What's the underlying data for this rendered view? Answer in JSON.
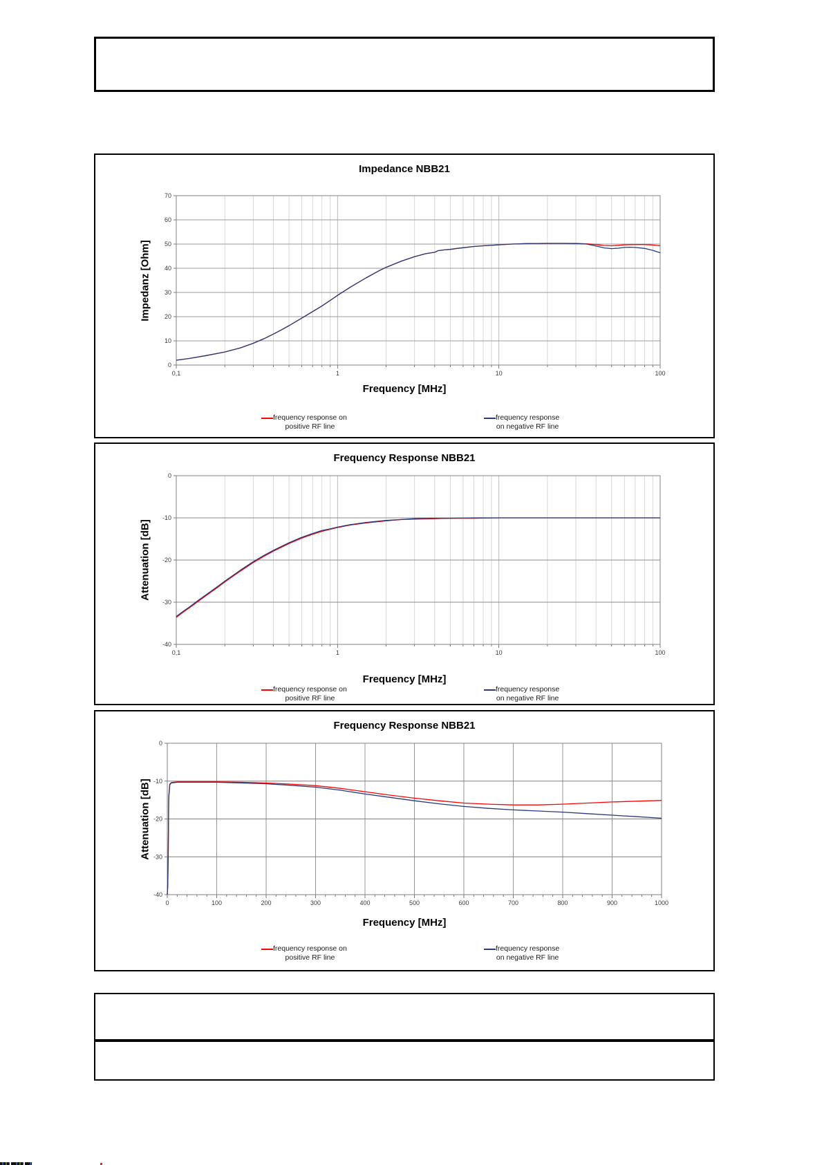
{
  "page": {
    "background": "#ffffff"
  },
  "chart_data": [
    {
      "type": "line",
      "title": "Impedance NBB21",
      "xlabel": "Frequency [MHz]",
      "ylabel": "Impedanz [Ohm]",
      "xscale": "log",
      "xlim": [
        0.1,
        100
      ],
      "ylim": [
        0,
        70
      ],
      "grid": true,
      "legend_position": "bottom",
      "xtick_values": [
        0.1,
        1,
        10,
        100
      ],
      "xtick_labels": [
        "0,1",
        "1",
        "10",
        "100"
      ],
      "ytick_values": [
        70,
        60,
        50,
        40,
        30,
        20,
        10,
        0
      ],
      "ytick_labels": [
        "70",
        "60",
        "50",
        "40",
        "30",
        "20",
        "10",
        "0"
      ],
      "legend": {
        "pos_line1": "frequency response on",
        "pos_line2": "positive RF line",
        "neg_line1": "frequency response",
        "neg_line2": "on negative RF line"
      },
      "series": [
        {
          "name": "frequency response on positive RF line",
          "color": "#ff0000",
          "points": [
            [
              0.1,
              2.0
            ],
            [
              0.12,
              2.7
            ],
            [
              0.15,
              3.8
            ],
            [
              0.2,
              5.4
            ],
            [
              0.25,
              7.1
            ],
            [
              0.3,
              9.0
            ],
            [
              0.35,
              10.9
            ],
            [
              0.4,
              12.8
            ],
            [
              0.45,
              14.6
            ],
            [
              0.5,
              16.3
            ],
            [
              0.6,
              19.4
            ],
            [
              0.7,
              22.1
            ],
            [
              0.8,
              24.4
            ],
            [
              0.9,
              26.7
            ],
            [
              1.0,
              28.8
            ],
            [
              1.2,
              32.2
            ],
            [
              1.5,
              36.0
            ],
            [
              1.8,
              38.9
            ],
            [
              2.0,
              40.4
            ],
            [
              2.5,
              43.0
            ],
            [
              3.0,
              44.8
            ],
            [
              3.5,
              46.0
            ],
            [
              4.0,
              46.6
            ],
            [
              4.2,
              47.3
            ],
            [
              4.6,
              47.6
            ],
            [
              5.0,
              47.8
            ],
            [
              5.5,
              48.2
            ],
            [
              6.0,
              48.5
            ],
            [
              7.0,
              49.0
            ],
            [
              8.0,
              49.3
            ],
            [
              10,
              49.7
            ],
            [
              12,
              50.0
            ],
            [
              15,
              50.2
            ],
            [
              20,
              50.3
            ],
            [
              25,
              50.3
            ],
            [
              30,
              50.3
            ],
            [
              35,
              50.1
            ],
            [
              40,
              49.8
            ],
            [
              45,
              49.4
            ],
            [
              50,
              49.3
            ],
            [
              55,
              49.5
            ],
            [
              60,
              49.7
            ],
            [
              70,
              49.8
            ],
            [
              80,
              49.8
            ],
            [
              90,
              49.6
            ],
            [
              100,
              49.3
            ]
          ]
        },
        {
          "name": "frequency response on negative RF line",
          "color": "#27397a",
          "points": [
            [
              0.1,
              2.0
            ],
            [
              0.12,
              2.7
            ],
            [
              0.15,
              3.8
            ],
            [
              0.2,
              5.4
            ],
            [
              0.25,
              7.1
            ],
            [
              0.3,
              9.0
            ],
            [
              0.35,
              10.9
            ],
            [
              0.4,
              12.8
            ],
            [
              0.45,
              14.6
            ],
            [
              0.5,
              16.3
            ],
            [
              0.6,
              19.4
            ],
            [
              0.7,
              22.1
            ],
            [
              0.8,
              24.4
            ],
            [
              0.9,
              26.7
            ],
            [
              1.0,
              28.8
            ],
            [
              1.2,
              32.2
            ],
            [
              1.5,
              36.0
            ],
            [
              1.8,
              38.9
            ],
            [
              2.0,
              40.4
            ],
            [
              2.5,
              43.0
            ],
            [
              3.0,
              44.8
            ],
            [
              3.5,
              46.0
            ],
            [
              4.0,
              46.6
            ],
            [
              4.2,
              47.3
            ],
            [
              4.6,
              47.6
            ],
            [
              5.0,
              47.8
            ],
            [
              5.5,
              48.2
            ],
            [
              6.0,
              48.5
            ],
            [
              7.0,
              49.0
            ],
            [
              8.0,
              49.3
            ],
            [
              10,
              49.7
            ],
            [
              12,
              50.0
            ],
            [
              15,
              50.2
            ],
            [
              20,
              50.3
            ],
            [
              25,
              50.3
            ],
            [
              30,
              50.2
            ],
            [
              35,
              50.0
            ],
            [
              40,
              49.2
            ],
            [
              45,
              48.4
            ],
            [
              50,
              48.1
            ],
            [
              55,
              48.3
            ],
            [
              60,
              48.6
            ],
            [
              65,
              48.7
            ],
            [
              70,
              48.6
            ],
            [
              80,
              48.2
            ],
            [
              90,
              47.4
            ],
            [
              100,
              46.4
            ]
          ]
        }
      ]
    },
    {
      "type": "line",
      "title": "Frequency Response NBB21",
      "xlabel": "Frequency [MHz]",
      "ylabel": "Attenuation [dB]",
      "xscale": "log",
      "xlim": [
        0.1,
        100
      ],
      "ylim": [
        -40,
        0
      ],
      "grid": true,
      "legend_position": "bottom",
      "xtick_values": [
        0.1,
        1,
        10,
        100
      ],
      "xtick_labels": [
        "0,1",
        "1",
        "10",
        "100"
      ],
      "ytick_values": [
        0,
        -10,
        -20,
        -30,
        -40
      ],
      "ytick_labels": [
        "0",
        "-10",
        "-20",
        "-30",
        "-40"
      ],
      "legend": {
        "pos_line1": "frequency response on",
        "pos_line2": "positive RF line",
        "neg_line1": "frequency response",
        "neg_line2": "on negative RF line"
      },
      "series": [
        {
          "name": "frequency response on positive RF line",
          "color": "#ff0000",
          "points": [
            [
              0.1,
              -33.6
            ],
            [
              0.11,
              -32.4
            ],
            [
              0.12,
              -31.4
            ],
            [
              0.14,
              -29.5
            ],
            [
              0.16,
              -27.9
            ],
            [
              0.18,
              -26.5
            ],
            [
              0.2,
              -25.2
            ],
            [
              0.25,
              -22.6
            ],
            [
              0.3,
              -20.6
            ],
            [
              0.35,
              -19.1
            ],
            [
              0.4,
              -17.9
            ],
            [
              0.5,
              -16.1
            ],
            [
              0.6,
              -14.8
            ],
            [
              0.7,
              -13.9
            ],
            [
              0.8,
              -13.2
            ],
            [
              0.9,
              -12.7
            ],
            [
              1.0,
              -12.3
            ],
            [
              1.2,
              -11.7
            ],
            [
              1.5,
              -11.2
            ],
            [
              2.0,
              -10.7
            ],
            [
              2.5,
              -10.4
            ],
            [
              3.0,
              -10.3
            ],
            [
              4.0,
              -10.2
            ],
            [
              5.0,
              -10.1
            ],
            [
              7.0,
              -10.1
            ],
            [
              10,
              -10.0
            ],
            [
              15,
              -10.0
            ],
            [
              20,
              -10.0
            ],
            [
              30,
              -10.0
            ],
            [
              50,
              -10.0
            ],
            [
              70,
              -10.0
            ],
            [
              100,
              -10.0
            ]
          ]
        },
        {
          "name": "frequency response on negative RF line",
          "color": "#27397a",
          "points": [
            [
              0.1,
              -33.4
            ],
            [
              0.11,
              -32.2
            ],
            [
              0.12,
              -31.2
            ],
            [
              0.14,
              -29.3
            ],
            [
              0.16,
              -27.7
            ],
            [
              0.18,
              -26.3
            ],
            [
              0.2,
              -25.0
            ],
            [
              0.25,
              -22.4
            ],
            [
              0.3,
              -20.4
            ],
            [
              0.35,
              -18.9
            ],
            [
              0.4,
              -17.7
            ],
            [
              0.5,
              -15.9
            ],
            [
              0.6,
              -14.6
            ],
            [
              0.7,
              -13.7
            ],
            [
              0.8,
              -13.0
            ],
            [
              0.9,
              -12.6
            ],
            [
              1.0,
              -12.2
            ],
            [
              1.2,
              -11.6
            ],
            [
              1.5,
              -11.1
            ],
            [
              2.0,
              -10.6
            ],
            [
              2.5,
              -10.4
            ],
            [
              3.0,
              -10.2
            ],
            [
              4.0,
              -10.1
            ],
            [
              5.0,
              -10.1
            ],
            [
              7.0,
              -10.0
            ],
            [
              10,
              -10.0
            ],
            [
              15,
              -10.0
            ],
            [
              20,
              -10.0
            ],
            [
              30,
              -10.0
            ],
            [
              50,
              -10.0
            ],
            [
              70,
              -10.0
            ],
            [
              100,
              -10.0
            ]
          ]
        }
      ]
    },
    {
      "type": "line",
      "title": "Frequency Response NBB21",
      "xlabel": "Frequency [MHz]",
      "ylabel": "Attenuation [dB]",
      "xscale": "linear",
      "xlim": [
        0,
        1000
      ],
      "ylim": [
        -40,
        0
      ],
      "xtick_step": 100,
      "xminor_step": 20,
      "grid": true,
      "legend_position": "bottom",
      "xtick_values": [
        0,
        100,
        200,
        300,
        400,
        500,
        600,
        700,
        800,
        900,
        1000
      ],
      "xtick_labels": [
        "0",
        "100",
        "200",
        "300",
        "400",
        "500",
        "600",
        "700",
        "800",
        "900",
        "1000"
      ],
      "ytick_values": [
        0,
        -10,
        -20,
        -30,
        -40
      ],
      "ytick_labels": [
        "0",
        "-10",
        "-20",
        "-30",
        "-40"
      ],
      "legend": {
        "pos_line1": "frequency response on",
        "pos_line2": "positive RF line",
        "neg_line1": "frequency response",
        "neg_line2": "on negative RF line"
      },
      "series": [
        {
          "name": "frequency response on positive RF line",
          "color": "#ff0000",
          "points": [
            [
              0,
              -40
            ],
            [
              1,
              -38
            ],
            [
              2,
              -30
            ],
            [
              3,
              -14
            ],
            [
              5,
              -10.8
            ],
            [
              8,
              -10.4
            ],
            [
              20,
              -10.2
            ],
            [
              50,
              -10.2
            ],
            [
              100,
              -10.2
            ],
            [
              150,
              -10.3
            ],
            [
              200,
              -10.5
            ],
            [
              250,
              -10.8
            ],
            [
              300,
              -11.2
            ],
            [
              350,
              -11.9
            ],
            [
              400,
              -12.8
            ],
            [
              450,
              -13.7
            ],
            [
              500,
              -14.5
            ],
            [
              550,
              -15.2
            ],
            [
              600,
              -15.8
            ],
            [
              650,
              -16.1
            ],
            [
              700,
              -16.3
            ],
            [
              750,
              -16.3
            ],
            [
              800,
              -16.1
            ],
            [
              850,
              -15.8
            ],
            [
              900,
              -15.5
            ],
            [
              950,
              -15.3
            ],
            [
              1000,
              -15.1
            ]
          ]
        },
        {
          "name": "frequency response on negative RF line",
          "color": "#27397a",
          "points": [
            [
              0,
              -40
            ],
            [
              1,
              -37
            ],
            [
              2,
              -28
            ],
            [
              3,
              -14.5
            ],
            [
              5,
              -11.0
            ],
            [
              8,
              -10.5
            ],
            [
              20,
              -10.3
            ],
            [
              50,
              -10.3
            ],
            [
              100,
              -10.3
            ],
            [
              150,
              -10.5
            ],
            [
              200,
              -10.7
            ],
            [
              250,
              -11.1
            ],
            [
              300,
              -11.6
            ],
            [
              350,
              -12.4
            ],
            [
              400,
              -13.4
            ],
            [
              450,
              -14.3
            ],
            [
              500,
              -15.2
            ],
            [
              550,
              -16.0
            ],
            [
              600,
              -16.7
            ],
            [
              650,
              -17.2
            ],
            [
              700,
              -17.6
            ],
            [
              750,
              -17.9
            ],
            [
              800,
              -18.2
            ],
            [
              850,
              -18.6
            ],
            [
              900,
              -19.0
            ],
            [
              950,
              -19.4
            ],
            [
              1000,
              -19.8
            ]
          ]
        }
      ]
    }
  ]
}
